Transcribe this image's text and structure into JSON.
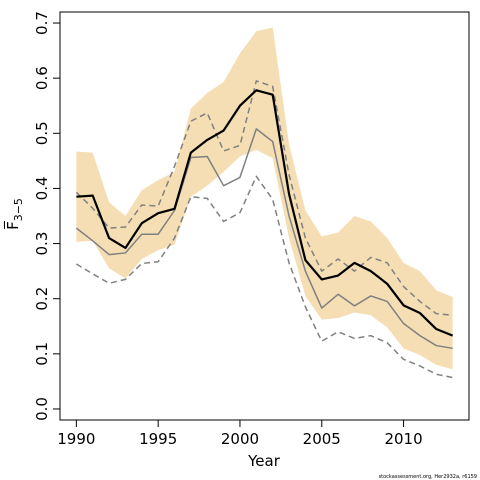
{
  "chart_data": {
    "type": "line",
    "xlabel": "Year",
    "ylabel": "F̅",
    "ylabel_subscript": "3−5",
    "footnote": "stockassessment.org, Her2932a, r6159",
    "xlim": [
      1989,
      2014
    ],
    "ylim": [
      -0.02,
      0.72
    ],
    "x_ticks": [
      1990,
      1995,
      2000,
      2005,
      2010
    ],
    "x_tick_labels": [
      "1990",
      "1995",
      "2000",
      "2005",
      "2010"
    ],
    "y_ticks": [
      0.0,
      0.1,
      0.2,
      0.3,
      0.4,
      0.5,
      0.6,
      0.7
    ],
    "y_tick_labels": [
      "0.0",
      "0.1",
      "0.2",
      "0.3",
      "0.4",
      "0.5",
      "0.6",
      "0.7"
    ],
    "grid": false,
    "colors": {
      "band": "#f5deb3",
      "estimate": "#000000",
      "previous": "#808080"
    },
    "x": [
      1990,
      1991,
      1992,
      1993,
      1994,
      1995,
      1996,
      1997,
      1998,
      1999,
      2000,
      2001,
      2002,
      2003,
      2004,
      2005,
      2006,
      2007,
      2008,
      2009,
      2010,
      2011,
      2012,
      2013
    ],
    "band": {
      "upper": [
        0.467,
        0.465,
        0.375,
        0.35,
        0.397,
        0.415,
        0.43,
        0.545,
        0.573,
        0.593,
        0.645,
        0.685,
        0.692,
        0.48,
        0.36,
        0.313,
        0.32,
        0.35,
        0.34,
        0.31,
        0.265,
        0.25,
        0.215,
        0.203
      ],
      "lower": [
        0.303,
        0.305,
        0.255,
        0.237,
        0.272,
        0.288,
        0.298,
        0.385,
        0.405,
        0.43,
        0.458,
        0.47,
        0.455,
        0.31,
        0.205,
        0.162,
        0.165,
        0.175,
        0.17,
        0.148,
        0.11,
        0.098,
        0.08,
        0.072
      ]
    },
    "series": [
      {
        "style": "solid-thick",
        "values": [
          0.385,
          0.387,
          0.31,
          0.292,
          0.337,
          0.355,
          0.363,
          0.465,
          0.488,
          0.505,
          0.55,
          0.578,
          0.57,
          0.39,
          0.27,
          0.235,
          0.242,
          0.265,
          0.25,
          0.227,
          0.188,
          0.174,
          0.145,
          0.133
        ]
      },
      {
        "style": "solid-grey",
        "values": [
          0.328,
          0.305,
          0.28,
          0.283,
          0.317,
          0.317,
          0.36,
          0.456,
          0.458,
          0.405,
          0.42,
          0.508,
          0.485,
          0.35,
          0.25,
          0.183,
          0.208,
          0.187,
          0.205,
          0.195,
          0.155,
          0.133,
          0.115,
          0.11
        ]
      },
      {
        "style": "dashed-upper",
        "values": [
          0.393,
          0.364,
          0.328,
          0.33,
          0.37,
          0.368,
          0.44,
          0.522,
          0.537,
          0.468,
          0.478,
          0.595,
          0.585,
          0.425,
          0.31,
          0.25,
          0.272,
          0.25,
          0.275,
          0.265,
          0.222,
          0.195,
          0.173,
          0.17
        ]
      },
      {
        "style": "dashed-lower",
        "values": [
          0.263,
          0.245,
          0.228,
          0.235,
          0.264,
          0.267,
          0.31,
          0.385,
          0.382,
          0.34,
          0.356,
          0.422,
          0.38,
          0.265,
          0.185,
          0.123,
          0.14,
          0.128,
          0.133,
          0.12,
          0.09,
          0.078,
          0.063,
          0.057
        ]
      }
    ]
  }
}
